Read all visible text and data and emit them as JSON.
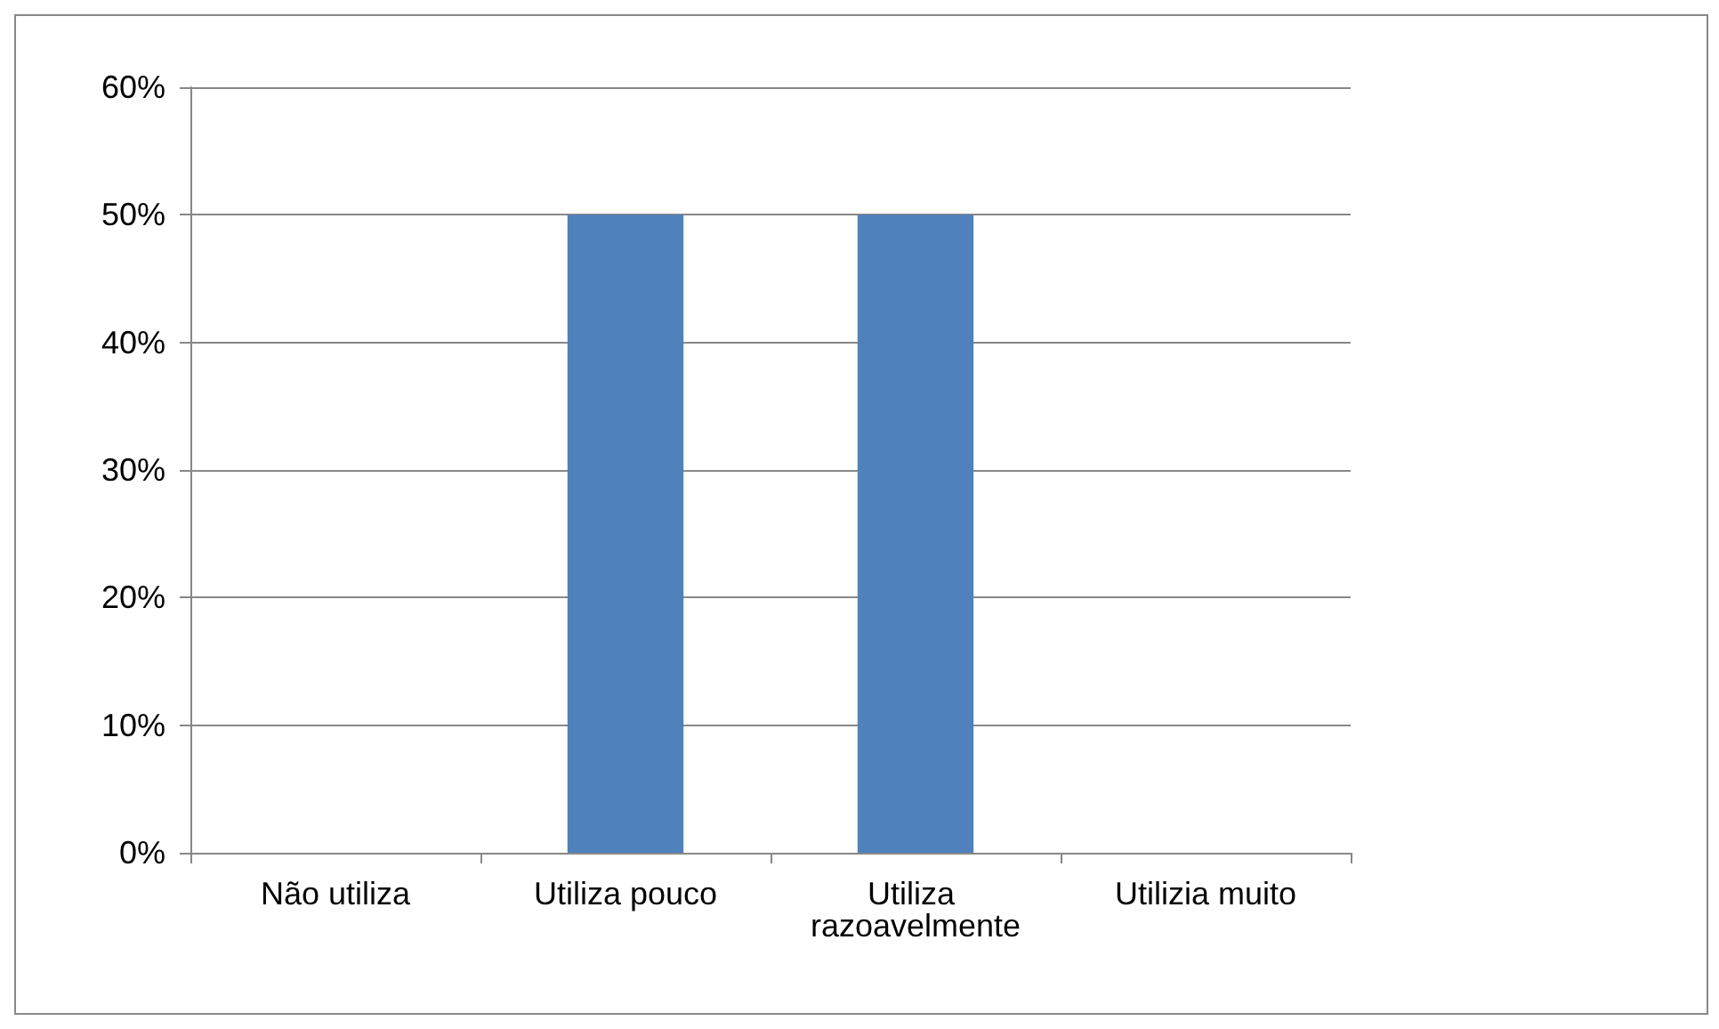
{
  "chart_data": {
    "type": "bar",
    "categories": [
      "Não utiliza",
      "Utiliza pouco",
      "Utiliza razoavelmente",
      "Utilizia muito"
    ],
    "series": [
      {
        "color": "#4f81bd",
        "values": [
          0,
          50,
          50,
          0
        ]
      }
    ],
    "ylim": [
      0,
      60
    ],
    "yticks": [
      {
        "value": 0,
        "label": "0%"
      },
      {
        "value": 10,
        "label": "10%"
      },
      {
        "value": 20,
        "label": "20%"
      },
      {
        "value": 30,
        "label": "30%"
      },
      {
        "value": 40,
        "label": "40%"
      },
      {
        "value": 50,
        "label": "50%"
      },
      {
        "value": 60,
        "label": "60%"
      }
    ],
    "grid": "y"
  }
}
